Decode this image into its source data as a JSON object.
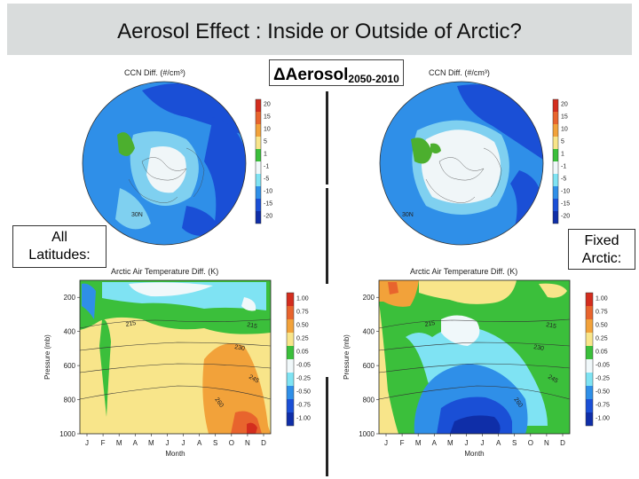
{
  "slide": {
    "title": "Aerosol Effect : Inside or Outside of Arctic?",
    "delta_label": "ΔAerosol",
    "delta_sub": "2050-2010",
    "left_label_line1": "All",
    "left_label_line2": "Latitudes:",
    "right_label_line1": "Fixed",
    "right_label_line2": "Arctic:"
  },
  "chart_data": [
    {
      "id": "ccn_all",
      "type": "heatmap",
      "title": "CCN Diff. (#/cm³)",
      "colorbar_ticks": [
        "20",
        "15",
        "10",
        "5",
        "1",
        "-1",
        "-5",
        "-10",
        "-15",
        "-20"
      ],
      "annotations": [
        "30N"
      ],
      "colors": {
        "strong_neg": "#1a4fd6",
        "neg": "#2f8fe8",
        "weak": "#7fd0f0",
        "near_zero": "#f0f6f8",
        "pos": "#4caf2e"
      }
    },
    {
      "id": "ccn_fixed",
      "type": "heatmap",
      "title": "CCN Diff. (#/cm³)",
      "colorbar_ticks": [
        "20",
        "15",
        "10",
        "5",
        "1",
        "-1",
        "-5",
        "-10",
        "-15",
        "-20"
      ],
      "annotations": [
        "30N"
      ]
    },
    {
      "id": "temp_all",
      "type": "heatmap",
      "title": "Arctic Air Temperature Diff. (K)",
      "xlabel": "Month",
      "ylabel": "Pressure (mb)",
      "x_ticks": [
        "J",
        "F",
        "M",
        "A",
        "M",
        "J",
        "J",
        "A",
        "S",
        "O",
        "N",
        "D"
      ],
      "y_ticks": [
        "200",
        "400",
        "600",
        "800",
        "1000"
      ],
      "ylim": [
        1000,
        100
      ],
      "colorbar_ticks": [
        "1.00",
        "0.75",
        "0.50",
        "0.25",
        "0.05",
        "-0.05",
        "-0.25",
        "-0.50",
        "-0.75",
        "-1.00"
      ],
      "contour_labels": [
        "215",
        "215",
        "230",
        "245",
        "260"
      ]
    },
    {
      "id": "temp_fixed",
      "type": "heatmap",
      "title": "Arctic Air Temperature Diff. (K)",
      "xlabel": "Month",
      "ylabel": "Pressure (mb)",
      "x_ticks": [
        "J",
        "F",
        "M",
        "A",
        "M",
        "J",
        "J",
        "A",
        "S",
        "O",
        "N",
        "D"
      ],
      "y_ticks": [
        "200",
        "400",
        "600",
        "800",
        "1000"
      ],
      "ylim": [
        1000,
        100
      ],
      "colorbar_ticks": [
        "1.00",
        "0.75",
        "0.50",
        "0.25",
        "0.05",
        "-0.05",
        "-0.25",
        "-0.50",
        "-0.75",
        "-1.00"
      ],
      "contour_labels": [
        "215",
        "215",
        "230",
        "245",
        "260"
      ]
    }
  ]
}
